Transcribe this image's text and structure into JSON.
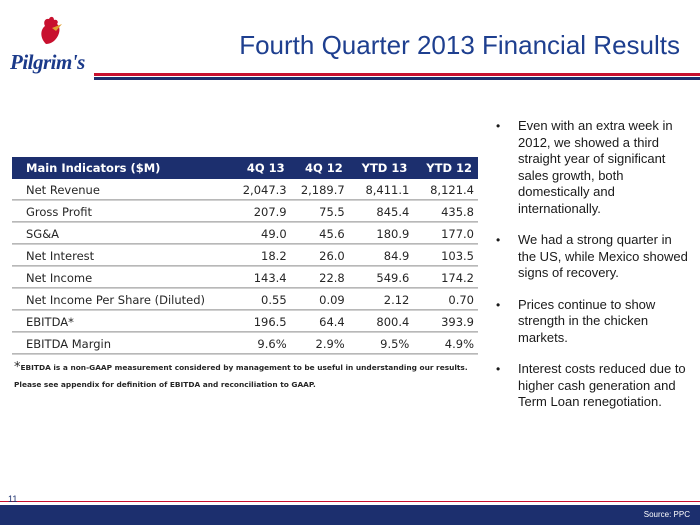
{
  "brand": {
    "name": "Pilgrim's"
  },
  "slide": {
    "title": "Fourth Quarter 2013 Financial Results",
    "page_number": "11",
    "source": "Source: PPC"
  },
  "table": {
    "headers": [
      "Main Indicators ($M)",
      "4Q 13",
      "4Q 12",
      "YTD 13",
      "YTD 12"
    ],
    "rows": [
      [
        "Net Revenue",
        "2,047.3",
        "2,189.7",
        "8,411.1",
        "8,121.4"
      ],
      [
        "Gross Profit",
        "207.9",
        "75.5",
        "845.4",
        "435.8"
      ],
      [
        "SG&A",
        "49.0",
        "45.6",
        "180.9",
        "177.0"
      ],
      [
        "Net Interest",
        "18.2",
        "26.0",
        "84.9",
        "103.5"
      ],
      [
        "Net Income",
        "143.4",
        "22.8",
        "549.6",
        "174.2"
      ],
      [
        "Net Income Per Share (Diluted)",
        "0.55",
        "0.09",
        "2.12",
        "0.70"
      ],
      [
        "EBITDA*",
        "196.5",
        "64.4",
        "800.4",
        "393.9"
      ],
      [
        "EBITDA  Margin",
        "9.6%",
        "2.9%",
        "9.5%",
        "4.9%"
      ]
    ],
    "footnote_star": "*",
    "footnote": "EBITDA is a non-GAAP measurement considered by management to be useful in understanding our results.  Please see appendix for definition of EBITDA and reconciliation to GAAP."
  },
  "bullets": [
    "Even with an extra week in 2012, we showed a third straight year of significant sales growth, both domestically and internationally.",
    "We had a strong quarter in the US, while Mexico showed signs of recovery.",
    "Prices continue to show strength in the chicken markets.",
    "Interest costs reduced due to higher cash generation and Term Loan renegotiation."
  ],
  "colors": {
    "navy": "#1c2f6e",
    "red": "#c8102e",
    "title_blue": "#1e3f8f"
  }
}
